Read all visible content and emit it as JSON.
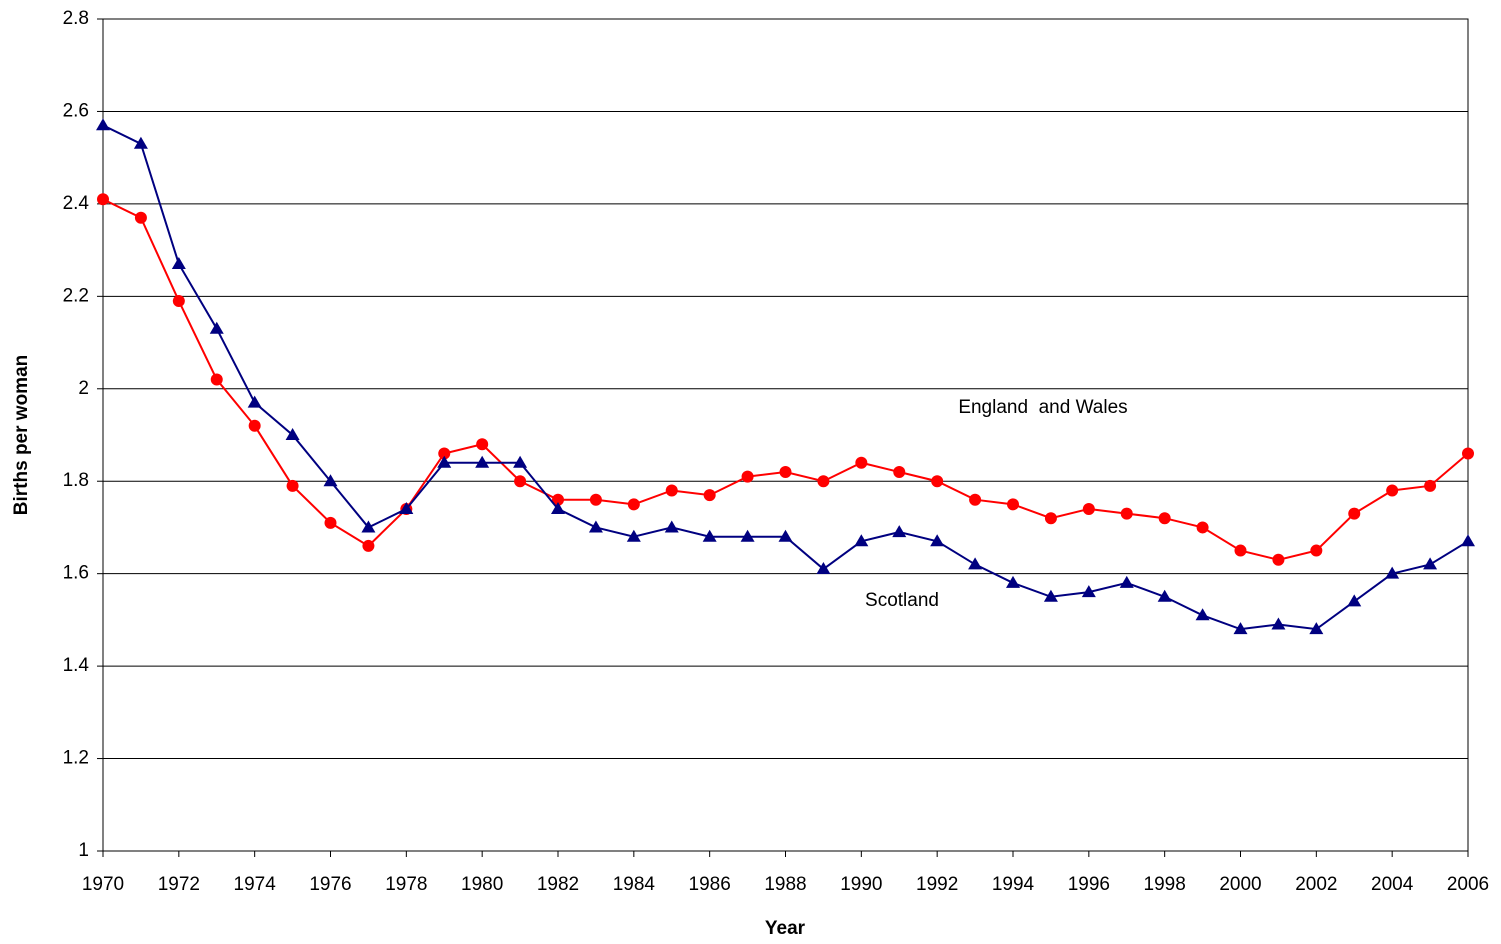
{
  "chart_data": {
    "type": "line",
    "xlabel": "Year",
    "ylabel": "Births per woman",
    "x": [
      1970,
      1971,
      1972,
      1973,
      1974,
      1975,
      1976,
      1977,
      1978,
      1979,
      1980,
      1981,
      1982,
      1983,
      1984,
      1985,
      1986,
      1987,
      1988,
      1989,
      1990,
      1991,
      1992,
      1993,
      1994,
      1995,
      1996,
      1997,
      1998,
      1999,
      2000,
      2001,
      2002,
      2003,
      2004,
      2005,
      2006
    ],
    "series": [
      {
        "name": "England  and Wales",
        "color": "#ff0000",
        "marker": "circle",
        "values": [
          2.41,
          2.37,
          2.19,
          2.02,
          1.92,
          1.79,
          1.71,
          1.66,
          1.74,
          1.86,
          1.88,
          1.8,
          1.76,
          1.76,
          1.75,
          1.78,
          1.77,
          1.81,
          1.82,
          1.8,
          1.84,
          1.82,
          1.8,
          1.76,
          1.75,
          1.72,
          1.74,
          1.73,
          1.72,
          1.7,
          1.65,
          1.63,
          1.65,
          1.73,
          1.78,
          1.79,
          1.86
        ]
      },
      {
        "name": "Scotland",
        "color": "#000080",
        "marker": "triangle",
        "values": [
          2.57,
          2.53,
          2.27,
          2.13,
          1.97,
          1.9,
          1.8,
          1.7,
          1.74,
          1.84,
          1.84,
          1.84,
          1.74,
          1.7,
          1.68,
          1.7,
          1.68,
          1.68,
          1.68,
          1.61,
          1.67,
          1.69,
          1.67,
          1.62,
          1.58,
          1.55,
          1.56,
          1.58,
          1.55,
          1.51,
          1.48,
          1.49,
          1.48,
          1.54,
          1.6,
          1.62,
          1.67
        ]
      }
    ],
    "xlim": [
      1970,
      2006
    ],
    "xticks": [
      1970,
      1972,
      1974,
      1976,
      1978,
      1980,
      1982,
      1984,
      1986,
      1988,
      1990,
      1992,
      1994,
      1996,
      1998,
      2000,
      2002,
      2004,
      2006
    ],
    "ylim": [
      1,
      2.8
    ],
    "yticks": [
      1,
      1.2,
      1.4,
      1.6,
      1.8,
      2,
      2.2,
      2.4,
      2.6,
      2.8
    ],
    "grid": true
  }
}
